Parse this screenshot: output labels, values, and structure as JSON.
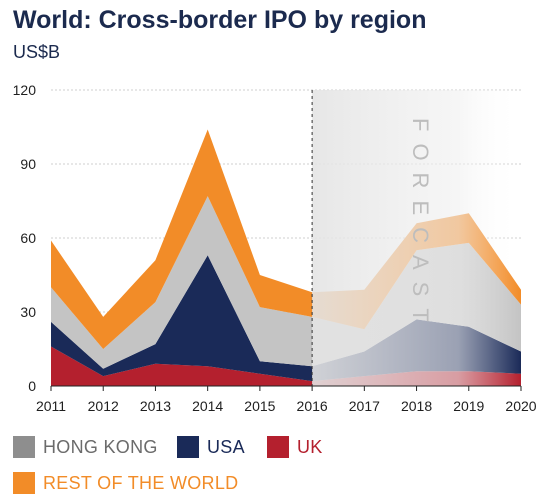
{
  "header": {
    "title": "World: Cross-border IPO by region",
    "subtitle": "US$B"
  },
  "chart_data": {
    "type": "area",
    "stacked": true,
    "x": [
      "2011",
      "2012",
      "2013",
      "2014",
      "2015",
      "2016",
      "2017",
      "2018",
      "2019",
      "2020"
    ],
    "ylim": [
      0,
      120
    ],
    "yticks": [
      0,
      30,
      60,
      90,
      120
    ],
    "forecast_label": "FORECAST",
    "forecast_start": "2016",
    "series": [
      {
        "name": "UK",
        "color": "#b4202e",
        "values": [
          16,
          4,
          9,
          8,
          5,
          2,
          4,
          6,
          6,
          5
        ]
      },
      {
        "name": "USA",
        "color": "#1a2a58",
        "values": [
          10,
          3,
          8,
          45,
          5,
          6,
          10,
          21,
          18,
          9
        ]
      },
      {
        "name": "HONG KONG",
        "color": "#c4c4c4",
        "values": [
          14,
          8,
          17,
          24,
          22,
          20,
          9,
          28,
          34,
          19
        ]
      },
      {
        "name": "REST OF THE WORLD",
        "color": "#f28c28",
        "values": [
          19,
          13,
          17,
          27,
          13,
          10,
          16,
          11,
          12,
          6
        ]
      }
    ]
  },
  "legend": [
    {
      "label": "HONG KONG",
      "color": "#8e8e8e",
      "text_color": "#6b6b6b"
    },
    {
      "label": "USA",
      "color": "#1a2a58",
      "text_color": "#1a2a58"
    },
    {
      "label": "UK",
      "color": "#b4202e",
      "text_color": "#b4202e"
    },
    {
      "label": "REST OF THE WORLD",
      "color": "#f28c28",
      "text_color": "#f28c28"
    }
  ]
}
